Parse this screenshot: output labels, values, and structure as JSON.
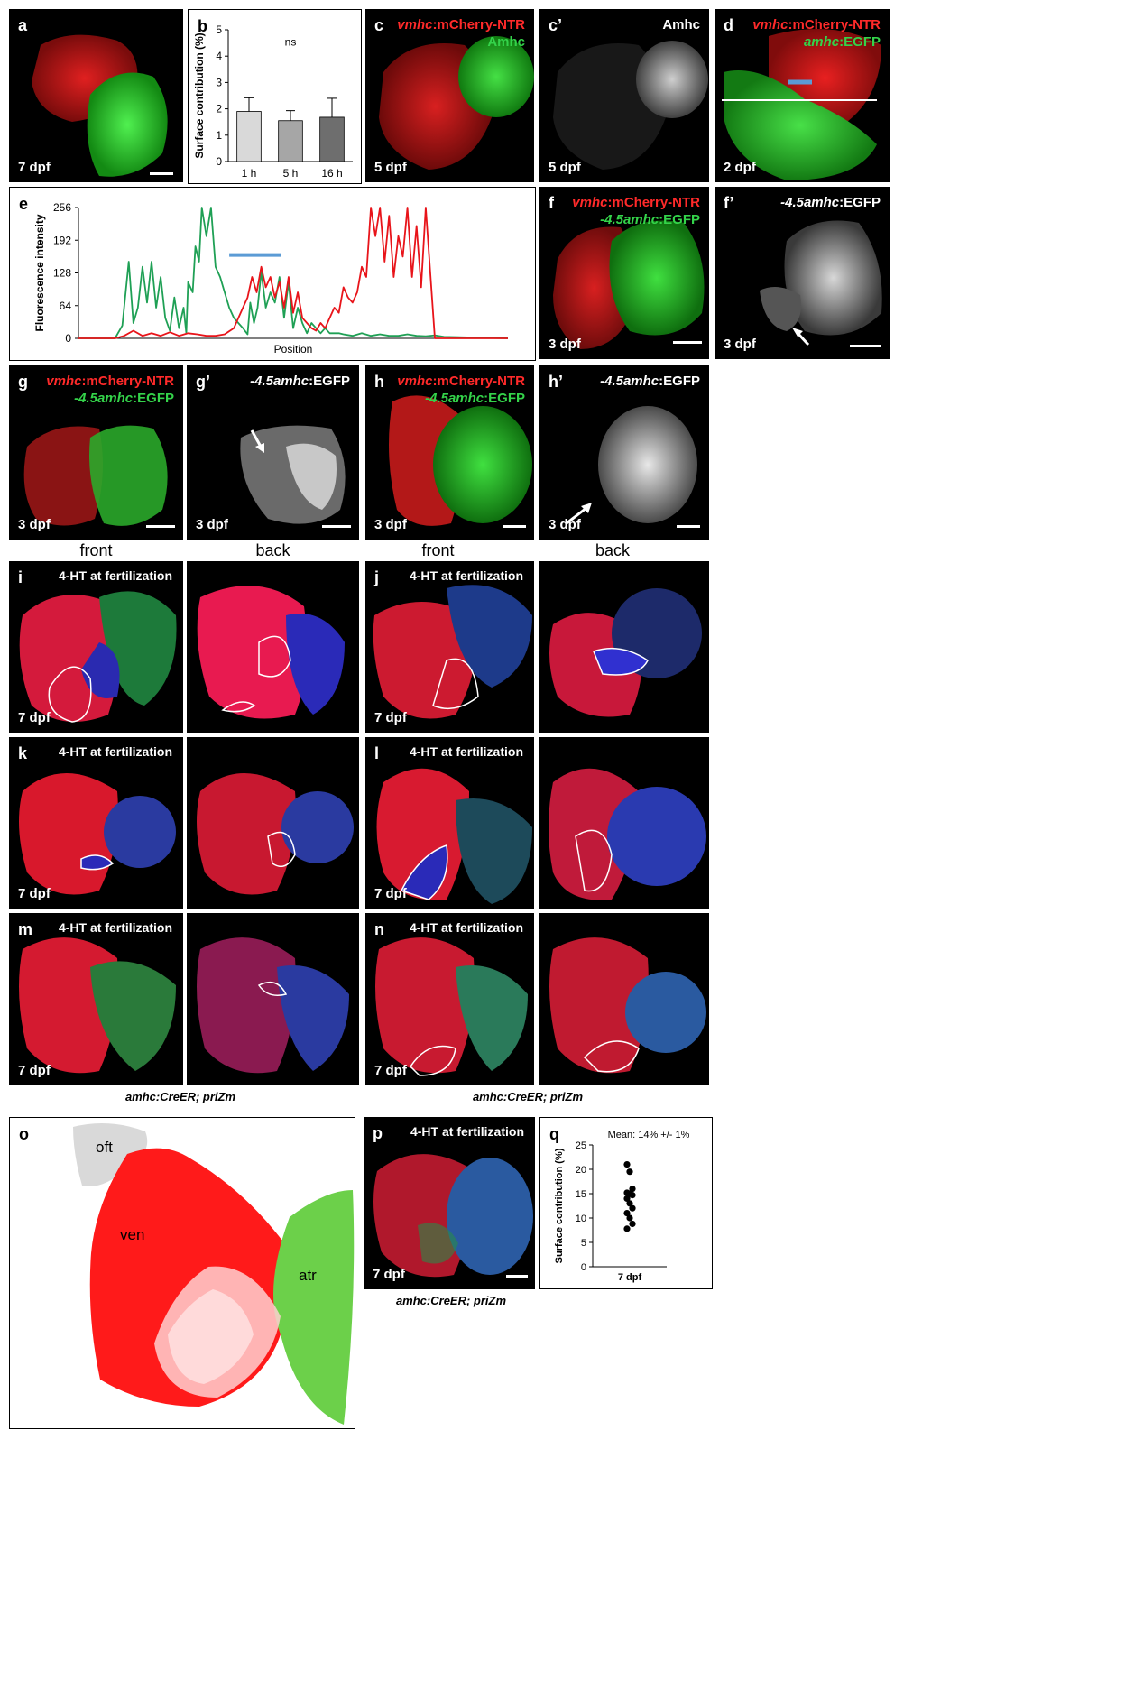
{
  "panel_labels": {
    "a": "a",
    "b": "b",
    "c": "c",
    "c_prime": "c’",
    "d": "d",
    "e": "e",
    "f": "f",
    "f_prime": "f’",
    "g": "g",
    "g_prime": "g’",
    "h": "h",
    "h_prime": "h’",
    "i": "i",
    "j": "j",
    "k": "k",
    "l": "l",
    "m": "m",
    "n": "n",
    "o": "o",
    "p": "p",
    "q": "q"
  },
  "stages": {
    "a": "7 dpf",
    "c": "5 dpf",
    "c_prime": "5 dpf",
    "d": "2 dpf",
    "f": "3 dpf",
    "f_prime": "3 dpf",
    "g": "3 dpf",
    "g_prime": "3 dpf",
    "h": "3 dpf",
    "h_prime": "3 dpf",
    "i": "7 dpf",
    "j": "7 dpf",
    "k": "7 dpf",
    "l": "7 dpf",
    "m": "7 dpf",
    "n": "7 dpf",
    "p": "7 dpf"
  },
  "legends": {
    "vmhc_italic": "vmhc",
    "mcherry_ntr": ":mCherry-NTR",
    "amhc_plain": "Amhc",
    "amhc_italic": "amhc",
    "egfp": ":EGFP",
    "amhc45_italic": "-4.5amhc"
  },
  "treatment": "4-HT at fertilization",
  "view_captions": {
    "front_1": "front",
    "back_1": "back",
    "front_2": "front",
    "back_2": "back"
  },
  "genotype": "amhc:CreER; priZm",
  "schematic_labels": {
    "oft": "oft",
    "ven": "ven",
    "atr": "atr"
  },
  "colors": {
    "ventricle_red": "#ff1a1a",
    "atrium_green": "#35d035",
    "plot_green": "#1fa055",
    "plot_red": "#e8141a",
    "highlight_blue": "#5b9bd5"
  },
  "chart_data": [
    {
      "id": "b",
      "type": "bar",
      "categories": [
        "1 h",
        "5 h",
        "16 h"
      ],
      "values": [
        1.9,
        1.55,
        1.68
      ],
      "errors": [
        0.52,
        0.38,
        0.72
      ],
      "bar_colors": [
        "#d9d9d9",
        "#a6a6a6",
        "#6e6e6e"
      ],
      "ylabel": "Surface contribution (%)",
      "ylim": [
        0,
        5
      ],
      "yticks": [
        "0",
        "1",
        "2",
        "3",
        "4",
        "5"
      ],
      "annotation": "ns"
    },
    {
      "id": "e",
      "type": "line",
      "xlabel": "Position",
      "ylabel": "Fluorescence intensity",
      "ylim": [
        0,
        256
      ],
      "yticks": [
        "0",
        "64",
        "128",
        "192",
        "256"
      ],
      "x_range": [
        0,
        470
      ],
      "series": [
        {
          "color": "#1fa055",
          "x": [
            0,
            40,
            48,
            55,
            60,
            65,
            70,
            75,
            80,
            85,
            90,
            95,
            100,
            105,
            110,
            115,
            118,
            120,
            125,
            128,
            132,
            135,
            140,
            145,
            150,
            155,
            160,
            165,
            170,
            175,
            180,
            185,
            188,
            192,
            196,
            200,
            205,
            210,
            215,
            220,
            225,
            230,
            235,
            240,
            245,
            250,
            255,
            260,
            265,
            270,
            275,
            280,
            285,
            290,
            300,
            310,
            320,
            330,
            340,
            350,
            360,
            370,
            380,
            390,
            400,
            470
          ],
          "y": [
            0,
            0,
            25,
            150,
            30,
            60,
            140,
            70,
            150,
            60,
            120,
            40,
            15,
            80,
            20,
            60,
            10,
            110,
            90,
            180,
            150,
            256,
            200,
            256,
            140,
            120,
            90,
            60,
            40,
            30,
            20,
            8,
            70,
            30,
            60,
            130,
            60,
            90,
            70,
            120,
            40,
            110,
            20,
            60,
            30,
            10,
            30,
            20,
            10,
            20,
            10,
            10,
            10,
            8,
            5,
            10,
            5,
            8,
            5,
            5,
            8,
            5,
            4,
            6,
            3,
            0
          ]
        },
        {
          "color": "#e8141a",
          "x": [
            0,
            40,
            50,
            60,
            70,
            80,
            90,
            100,
            110,
            120,
            130,
            140,
            150,
            160,
            170,
            180,
            185,
            190,
            195,
            200,
            205,
            210,
            215,
            220,
            225,
            230,
            235,
            240,
            245,
            250,
            255,
            260,
            265,
            270,
            275,
            280,
            285,
            290,
            295,
            300,
            305,
            310,
            315,
            320,
            325,
            330,
            335,
            340,
            345,
            350,
            355,
            360,
            365,
            370,
            375,
            380,
            390,
            400,
            470
          ],
          "y": [
            0,
            0,
            5,
            15,
            5,
            10,
            5,
            12,
            5,
            10,
            8,
            5,
            5,
            8,
            20,
            60,
            80,
            120,
            90,
            140,
            100,
            120,
            80,
            110,
            60,
            120,
            50,
            90,
            40,
            30,
            20,
            15,
            30,
            20,
            40,
            60,
            50,
            100,
            80,
            70,
            90,
            140,
            120,
            256,
            200,
            256,
            150,
            240,
            120,
            200,
            160,
            256,
            120,
            220,
            100,
            256,
            0,
            0,
            0
          ]
        }
      ],
      "highlight": {
        "x_start": 165,
        "x_end": 222,
        "y": 163
      }
    },
    {
      "id": "q",
      "type": "scatter",
      "categories": [
        "7 dpf"
      ],
      "x": [
        "7 dpf",
        "7 dpf",
        "7 dpf",
        "7 dpf",
        "7 dpf",
        "7 dpf",
        "7 dpf",
        "7 dpf",
        "7 dpf",
        "7 dpf",
        "7 dpf",
        "7 dpf",
        "7 dpf"
      ],
      "y": [
        21,
        19.5,
        16,
        15.2,
        15,
        14.7,
        14,
        13,
        12,
        11,
        10,
        8.8,
        7.8
      ],
      "ylabel": "Surface contribution (%)",
      "ylim": [
        0,
        25
      ],
      "yticks": [
        "0",
        "5",
        "10",
        "15",
        "20",
        "25"
      ],
      "annotation": "Mean: 14% +/- 1%"
    }
  ]
}
